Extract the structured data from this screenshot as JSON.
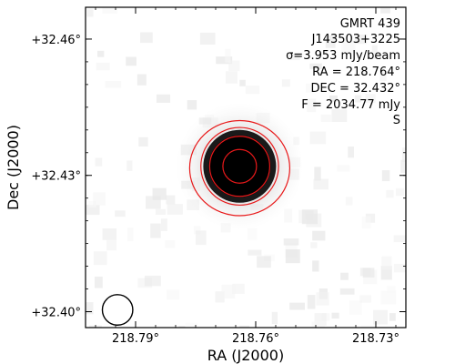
{
  "chart_data": {
    "type": "heatmap",
    "title": "",
    "xlabel": "RA (J2000)",
    "ylabel": "Dec (J2000)",
    "x_ticks": [
      {
        "value": 218.79,
        "label": "218.79°"
      },
      {
        "value": 218.76,
        "label": "218.76°"
      },
      {
        "value": 218.73,
        "label": "218.73°"
      }
    ],
    "y_ticks": [
      {
        "value": 32.46,
        "label": "+32.46°"
      },
      {
        "value": 32.43,
        "label": "+32.43°"
      },
      {
        "value": 32.4,
        "label": "+32.40°"
      }
    ],
    "xlim": [
      218.8025,
      218.7225
    ],
    "ylim": [
      32.3965,
      32.467
    ],
    "x_inverted": true,
    "colormap": "grayscale",
    "contour_color": "#e8191a",
    "beam_color": "#000000",
    "source": {
      "ra": 218.764,
      "dec": 32.432,
      "contour_radii_deg": [
        0.0042,
        0.0075,
        0.0097,
        0.0125
      ]
    },
    "beam": {
      "ra": 218.7945,
      "dec": 32.4004,
      "radius_deg": 0.0038
    },
    "annotations": [
      "GMRT 439",
      "J143503+3225",
      "σ=3.953 mJy/beam",
      "RA = 218.764°",
      "DEC = 32.432°",
      "F = 2034.77 mJy",
      "S"
    ],
    "grid": false,
    "legend": "none"
  }
}
